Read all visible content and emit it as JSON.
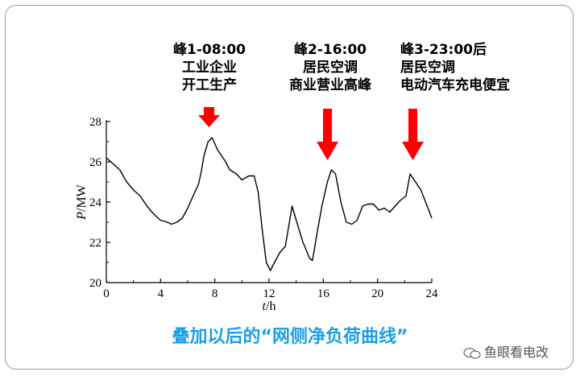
{
  "annotations": [
    {
      "lines": [
        "峰1-08:00",
        "工业企业",
        "开工生产"
      ]
    },
    {
      "lines": [
        "峰2-16:00",
        "居民空调",
        "商业营业高峰"
      ]
    },
    {
      "lines": [
        "峰3-23:00后",
        "居民空调",
        "电动汽车充电便宜"
      ]
    }
  ],
  "arrow_color": "#ff0000",
  "caption": "叠加以后的“网侧净负荷曲线”",
  "caption_color": "#1aa0e8",
  "watermark": "鱼眼看电改",
  "chart_data": {
    "type": "line",
    "xlabel_var": "t",
    "xlabel_unit": "/h",
    "ylabel_var": "P",
    "ylabel_unit": "/MW",
    "xlim": [
      0,
      24
    ],
    "ylim": [
      20,
      28
    ],
    "xticks": [
      0,
      4,
      8,
      12,
      16,
      20,
      24
    ],
    "yticks": [
      20,
      22,
      24,
      26,
      28
    ],
    "grid": false,
    "series": [
      {
        "x": [
          0,
          0.5,
          1,
          1.5,
          2,
          2.5,
          3,
          3.5,
          4,
          4.5,
          4.8,
          5.2,
          5.6,
          6,
          6.4,
          6.8,
          7,
          7.2,
          7.5,
          7.8,
          8.2,
          8.5,
          8.8,
          9.1,
          9.6,
          10,
          10.5,
          10.9,
          11.2,
          11.5,
          11.8,
          12.1,
          12.4,
          12.8,
          13.2,
          13.7,
          14,
          14.5,
          15,
          15.2,
          15.5,
          15.9,
          16.3,
          16.6,
          16.9,
          17.3,
          17.7,
          18.1,
          18.5,
          18.9,
          19.3,
          19.7,
          20.1,
          20.5,
          20.9,
          21.3,
          21.7,
          22.1,
          22.4,
          22.8,
          23.2,
          23.6,
          24
        ],
        "y": [
          26.2,
          25.9,
          25.6,
          25.0,
          24.6,
          24.3,
          23.8,
          23.4,
          23.1,
          23.0,
          22.9,
          23.0,
          23.2,
          23.7,
          24.3,
          24.9,
          25.5,
          26.3,
          27.0,
          27.2,
          26.6,
          26.3,
          26.0,
          25.6,
          25.4,
          25.1,
          25.3,
          25.3,
          24.5,
          22.6,
          21.0,
          20.6,
          21.0,
          21.5,
          21.8,
          23.8,
          23.1,
          22.0,
          21.2,
          21.1,
          22.3,
          23.8,
          25.0,
          25.6,
          25.4,
          24.0,
          23.0,
          22.9,
          23.1,
          23.8,
          23.9,
          23.9,
          23.6,
          23.7,
          23.5,
          23.8,
          24.1,
          24.3,
          25.4,
          25.0,
          24.6,
          23.9,
          23.2
        ]
      }
    ]
  }
}
